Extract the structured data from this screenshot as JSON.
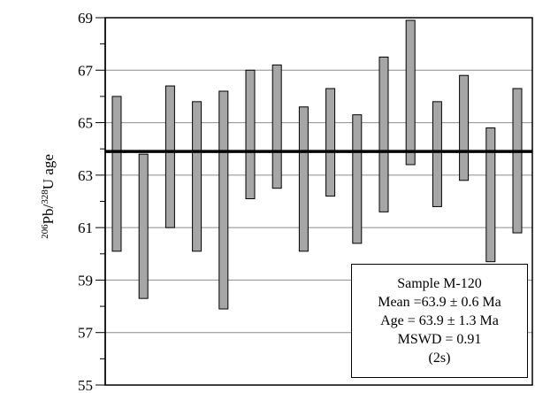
{
  "chart_data": {
    "type": "bar",
    "subtype": "error-bar (age range per analysis)",
    "ylabel": {
      "sup1": "206",
      "mid1": "Pb/",
      "sup2": "328",
      "mid2": "U age"
    },
    "ylim": [
      55,
      69
    ],
    "yticks": [
      "55",
      "57",
      "59",
      "61",
      "63",
      "65",
      "67",
      "69"
    ],
    "yminor_step": 1,
    "grid": "horizontal at labeled ticks",
    "bars": [
      {
        "low": 60.1,
        "high": 66.0
      },
      {
        "low": 58.3,
        "high": 63.8
      },
      {
        "low": 61.0,
        "high": 66.4
      },
      {
        "low": 60.1,
        "high": 65.8
      },
      {
        "low": 57.9,
        "high": 66.2
      },
      {
        "low": 62.1,
        "high": 67.0
      },
      {
        "low": 62.5,
        "high": 67.2
      },
      {
        "low": 60.1,
        "high": 65.6
      },
      {
        "low": 62.2,
        "high": 66.3
      },
      {
        "low": 60.4,
        "high": 65.3
      },
      {
        "low": 61.6,
        "high": 67.5
      },
      {
        "low": 63.4,
        "high": 68.9
      },
      {
        "low": 61.8,
        "high": 65.8
      },
      {
        "low": 62.8,
        "high": 66.8
      },
      {
        "low": 59.7,
        "high": 64.8
      },
      {
        "low": 60.8,
        "high": 66.3
      }
    ],
    "mean_line": 63.9,
    "bar_color": "#a6a6a6",
    "annotation": {
      "lines": [
        "Sample M-120",
        "Mean =63.9 ± 0.6 Ma",
        "Age = 63.9 ± 1.3 Ma",
        "MSWD = 0.91",
        "(2s)"
      ],
      "placement": "bottom-right"
    }
  }
}
